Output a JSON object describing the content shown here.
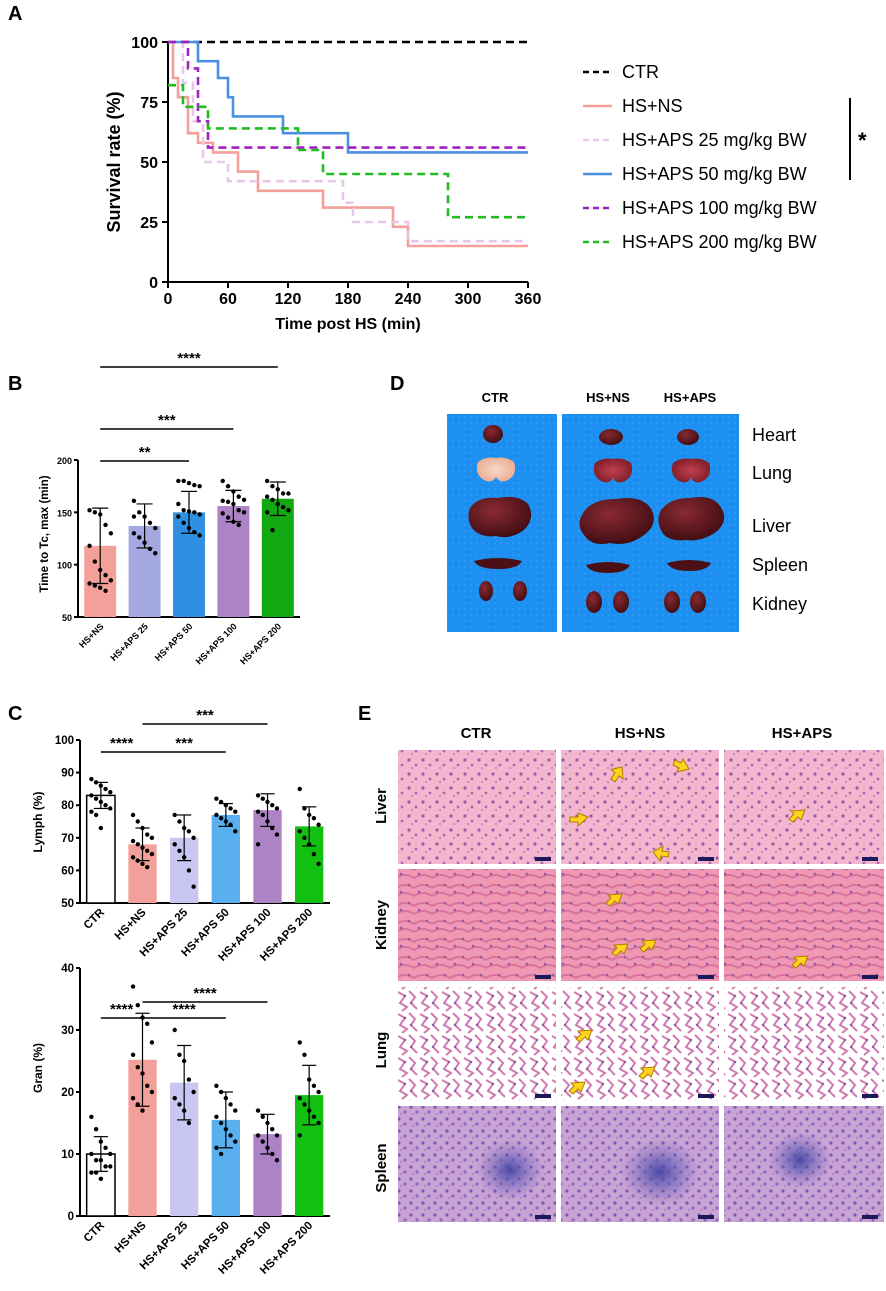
{
  "panels": {
    "A": "A",
    "B": "B",
    "C": "C",
    "D": "D",
    "E": "E"
  },
  "chart_data": [
    {
      "panel": "A",
      "type": "line",
      "step": true,
      "xlabel": "Time post HS (min)",
      "ylabel": "Survival rate (%)",
      "xlim": [
        0,
        360
      ],
      "ylim": [
        0,
        100
      ],
      "xticks": [
        0,
        60,
        120,
        180,
        240,
        300,
        360
      ],
      "yticks": [
        0,
        25,
        50,
        75,
        100
      ],
      "legend_position": "right",
      "significance": "*",
      "series": [
        {
          "name": "CTR",
          "color": "#000000",
          "dash": true,
          "points": [
            [
              0,
              100
            ],
            [
              360,
              100
            ]
          ]
        },
        {
          "name": "HS+NS",
          "color": "#f4a09a",
          "dash": false,
          "points": [
            [
              0,
              100
            ],
            [
              5,
              85
            ],
            [
              10,
              77
            ],
            [
              20,
              62
            ],
            [
              30,
              58
            ],
            [
              45,
              54
            ],
            [
              70,
              46
            ],
            [
              90,
              38
            ],
            [
              155,
              31
            ],
            [
              225,
              23
            ],
            [
              240,
              15
            ],
            [
              360,
              15
            ]
          ]
        },
        {
          "name": "HS+APS 25 mg/kg BW",
          "color": "#e8c7ea",
          "dash": true,
          "points": [
            [
              0,
              100
            ],
            [
              15,
              83
            ],
            [
              25,
              67
            ],
            [
              35,
              50
            ],
            [
              60,
              42
            ],
            [
              175,
              33
            ],
            [
              185,
              25
            ],
            [
              240,
              17
            ],
            [
              360,
              17
            ]
          ]
        },
        {
          "name": "HS+APS 50 mg/kg BW",
          "color": "#4a90e2",
          "dash": false,
          "points": [
            [
              0,
              100
            ],
            [
              30,
              92
            ],
            [
              50,
              85
            ],
            [
              60,
              77
            ],
            [
              65,
              69
            ],
            [
              115,
              62
            ],
            [
              180,
              54
            ],
            [
              360,
              54
            ]
          ]
        },
        {
          "name": "HS+APS 100 mg/kg BW",
          "color": "#a020c0",
          "dash": true,
          "points": [
            [
              0,
              100
            ],
            [
              20,
              89
            ],
            [
              30,
              67
            ],
            [
              40,
              56
            ],
            [
              360,
              56
            ]
          ]
        },
        {
          "name": "HS+APS 200 mg/kg BW",
          "color": "#22bb22",
          "dash": true,
          "points": [
            [
              0,
              82
            ],
            [
              15,
              73
            ],
            [
              40,
              64
            ],
            [
              65,
              64
            ],
            [
              130,
              55
            ],
            [
              155,
              45
            ],
            [
              280,
              27
            ],
            [
              360,
              27
            ]
          ]
        }
      ]
    },
    {
      "panel": "B",
      "type": "bar",
      "ylabel": "Time to Tc, max (min)",
      "ylim": [
        50,
        200
      ],
      "yticks": [
        50,
        100,
        150,
        200
      ],
      "categories": [
        "HS+NS",
        "HS+APS 25",
        "HS+APS 50",
        "HS+APS 100",
        "HS+APS 200"
      ],
      "values": [
        118,
        137,
        150,
        156,
        163
      ],
      "errors": [
        36,
        21,
        20,
        15,
        16
      ],
      "colors": [
        "#f4a09a",
        "#a3a8e0",
        "#2f8fe0",
        "#ae83c6",
        "#12a812"
      ],
      "points": [
        [
          152,
          150,
          148,
          138,
          130,
          118,
          103,
          95,
          90,
          85,
          82,
          80,
          78,
          75
        ],
        [
          161,
          150,
          146,
          140,
          135,
          130,
          126,
          121,
          115,
          111,
          146
        ],
        [
          180,
          180,
          178,
          176,
          175,
          158,
          152,
          151,
          150,
          148,
          146,
          140,
          135,
          131,
          128
        ],
        [
          180,
          175,
          170,
          165,
          162,
          161,
          160,
          158,
          152,
          150,
          149,
          145,
          141,
          138
        ],
        [
          180,
          175,
          172,
          168,
          168,
          165,
          162,
          158,
          155,
          152,
          150,
          133
        ]
      ],
      "significance": [
        {
          "from": 0,
          "to": 2,
          "label": "**"
        },
        {
          "from": 0,
          "to": 3,
          "label": "***"
        },
        {
          "from": 0,
          "to": 4,
          "label": "****"
        }
      ]
    },
    {
      "panel": "C-top",
      "type": "bar",
      "ylabel": "Lymph (%)",
      "ylim": [
        50,
        100
      ],
      "yticks": [
        50,
        60,
        70,
        80,
        90,
        100
      ],
      "categories": [
        "CTR",
        "HS+NS",
        "HS+APS 25",
        "HS+APS 50",
        "HS+APS 100",
        "HS+APS 200"
      ],
      "values": [
        83,
        68,
        70,
        77,
        78.5,
        73.5
      ],
      "errors": [
        4,
        5,
        7,
        3.5,
        5,
        6
      ],
      "colors": [
        "#ffffff",
        "#f4a09a",
        "#c8c6f2",
        "#5ab0ee",
        "#ae83c6",
        "#12c012"
      ],
      "points": [
        [
          88,
          87,
          86,
          85,
          84,
          83,
          82,
          81,
          80,
          79,
          78,
          77,
          73
        ],
        [
          77,
          75,
          73,
          71,
          70,
          69,
          68,
          67,
          66,
          65,
          64,
          63,
          62,
          61
        ],
        [
          77,
          75,
          73,
          72,
          70,
          68,
          66,
          64,
          60,
          55
        ],
        [
          82,
          81,
          80,
          79,
          78,
          77,
          76,
          75,
          74,
          72
        ],
        [
          83,
          82,
          81,
          80,
          79,
          78,
          77,
          75,
          73,
          71,
          68
        ],
        [
          85,
          79,
          77,
          76,
          74,
          72,
          70,
          68,
          65,
          62
        ]
      ],
      "significance": [
        {
          "from": 0,
          "to": 1,
          "label": "****"
        },
        {
          "from": 1,
          "to": 3,
          "label": "***"
        },
        {
          "from": 1,
          "to": 4,
          "label": "***"
        }
      ]
    },
    {
      "panel": "C-bottom",
      "type": "bar",
      "ylabel": "Gran (%)",
      "ylim": [
        0,
        40
      ],
      "yticks": [
        0,
        10,
        20,
        30,
        40
      ],
      "categories": [
        "CTR",
        "HS+NS",
        "HS+APS 25",
        "HS+APS 50",
        "HS+APS 100",
        "HS+APS 200"
      ],
      "values": [
        10,
        25.2,
        21.5,
        15.5,
        13.2,
        19.5
      ],
      "errors": [
        2.8,
        7.5,
        6,
        4.5,
        3.2,
        4.8
      ],
      "colors": [
        "#ffffff",
        "#f4a09a",
        "#c8c6f2",
        "#5ab0ee",
        "#ae83c6",
        "#12c012"
      ],
      "points": [
        [
          16,
          14,
          12,
          11,
          10,
          10,
          9,
          9,
          8,
          8,
          7,
          7,
          6
        ],
        [
          37,
          34,
          32,
          31,
          28,
          26,
          24,
          23,
          21,
          20,
          19,
          18,
          17
        ],
        [
          30,
          26,
          25,
          22,
          20,
          19,
          18,
          17,
          15
        ],
        [
          21,
          20,
          19,
          18,
          17,
          16,
          15,
          14,
          13,
          12,
          11,
          10
        ],
        [
          17,
          16,
          15,
          14,
          13,
          13,
          12,
          11,
          10,
          9
        ],
        [
          28,
          26,
          22,
          21,
          20,
          19,
          18,
          17,
          16,
          15,
          13
        ]
      ],
      "significance": [
        {
          "from": 0,
          "to": 1,
          "label": "****"
        },
        {
          "from": 1,
          "to": 3,
          "label": "****"
        },
        {
          "from": 1,
          "to": 4,
          "label": "****"
        }
      ]
    }
  ],
  "panel_d": {
    "groups": [
      "CTR",
      "HS+NS",
      "HS+APS"
    ],
    "organs": [
      "Heart",
      "Lung",
      "Liver",
      "Spleen",
      "Kidney"
    ]
  },
  "panel_e": {
    "columns": [
      "CTR",
      "HS+NS",
      "HS+APS"
    ],
    "rows": [
      "Liver",
      "Kidney",
      "Lung",
      "Spleen"
    ]
  }
}
